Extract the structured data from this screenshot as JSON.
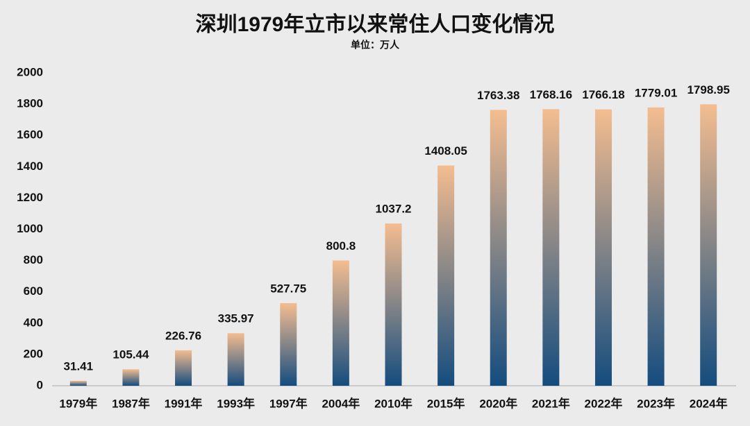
{
  "chart_data": {
    "type": "bar",
    "title": "深圳1979年立市以来常住人口变化情况",
    "subtitle": "单位：万人",
    "categories": [
      "1979年",
      "1987年",
      "1991年",
      "1993年",
      "1997年",
      "2004年",
      "2010年",
      "2015年",
      "2020年",
      "2021年",
      "2022年",
      "2023年",
      "2024年"
    ],
    "values": [
      31.41,
      105.44,
      226.76,
      335.97,
      527.75,
      800.8,
      1037.2,
      1408.05,
      1763.38,
      1768.16,
      1766.18,
      1779.01,
      1798.95
    ],
    "color": [
      "#f4bd90",
      "#144c7e"
    ],
    "ylim": [
      0,
      2000
    ],
    "yticks": [
      0,
      200,
      400,
      600,
      800,
      1000,
      1200,
      1400,
      1600,
      1800,
      2000
    ],
    "grid": false
  }
}
